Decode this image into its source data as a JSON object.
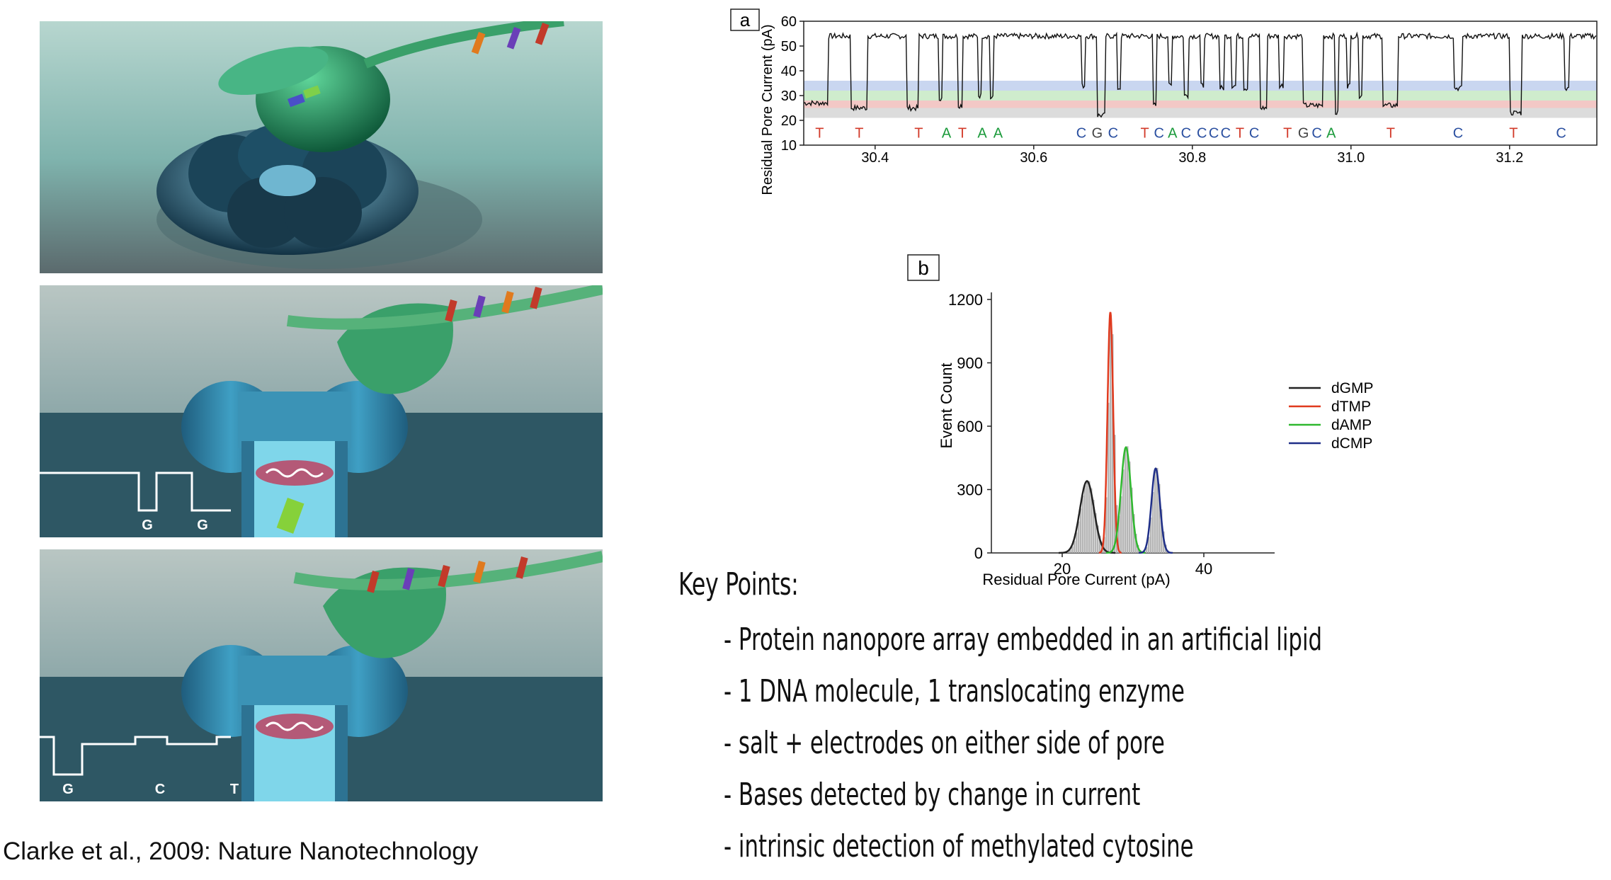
{
  "illustrations": [
    {
      "labels": []
    },
    {
      "labels": [
        "G",
        "G"
      ]
    },
    {
      "labels": [
        "G",
        "C",
        "T"
      ]
    }
  ],
  "citation": "Clarke et al., 2009: Nature Nanotechnology",
  "key_points": {
    "title": "Key Points:",
    "items": [
      "Protein nanopore array embedded in an artificial lipid",
      "1 DNA molecule, 1 translocating enzyme",
      "salt + electrodes on either side of pore",
      "Bases detected by change in current",
      "intrinsic detection of methylated cytosine"
    ],
    "bullet": "-"
  },
  "colors": {
    "T": "#d23a2a",
    "A": "#1a9a3a",
    "G": "#444444",
    "C": "#2a4fa0",
    "band_blue": "#c9d6f0",
    "band_green": "#cfeccd",
    "band_red": "#f3c8c6",
    "band_grey": "#dcdcdc"
  },
  "chart_data": [
    {
      "type": "line",
      "panel_label": "a",
      "ylabel": "Residual Pore Current (pA)",
      "ylim": [
        10,
        60
      ],
      "yticks": [
        "10",
        "20",
        "30",
        "40",
        "50",
        "60"
      ],
      "xlim": [
        30.31,
        31.31
      ],
      "xticks": [
        "30.4",
        "30.6",
        "30.8",
        "31.0",
        "31.2"
      ],
      "grid": false,
      "open_level": 54,
      "bands": [
        {
          "base": "C",
          "range": [
            32,
            36
          ]
        },
        {
          "base": "A",
          "range": [
            28,
            32
          ]
        },
        {
          "base": "T",
          "range": [
            25,
            28
          ]
        },
        {
          "base": "G",
          "range": [
            21,
            25
          ]
        }
      ],
      "events": [
        {
          "base": "T",
          "start": 30.31,
          "end": 30.34,
          "level": 27
        },
        {
          "base": "T",
          "start": 30.37,
          "end": 30.39,
          "level": 25
        },
        {
          "base": "T",
          "start": 30.44,
          "end": 30.455,
          "level": 25
        },
        {
          "base": "A",
          "start": 30.48,
          "end": 30.485,
          "level": 29
        },
        {
          "base": "T",
          "start": 30.505,
          "end": 30.51,
          "level": 26
        },
        {
          "base": "A",
          "start": 30.53,
          "end": 30.535,
          "level": 30
        },
        {
          "base": "A",
          "start": 30.545,
          "end": 30.55,
          "level": 29
        },
        {
          "base": "C",
          "start": 30.66,
          "end": 30.665,
          "level": 34
        },
        {
          "base": "G",
          "start": 30.68,
          "end": 30.69,
          "level": 22
        },
        {
          "base": "C",
          "start": 30.705,
          "end": 30.71,
          "level": 33
        },
        {
          "base": "T",
          "start": 30.75,
          "end": 30.755,
          "level": 26
        },
        {
          "base": "C",
          "start": 30.77,
          "end": 30.775,
          "level": 34
        },
        {
          "base": "A",
          "start": 30.79,
          "end": 30.795,
          "level": 30
        },
        {
          "base": "C",
          "start": 30.81,
          "end": 30.815,
          "level": 34
        },
        {
          "base": "C",
          "start": 30.835,
          "end": 30.84,
          "level": 33
        },
        {
          "base": "C",
          "start": 30.85,
          "end": 30.855,
          "level": 34
        },
        {
          "base": "C",
          "start": 30.865,
          "end": 30.87,
          "level": 33
        },
        {
          "base": "T",
          "start": 30.885,
          "end": 30.895,
          "level": 25
        },
        {
          "base": "C",
          "start": 30.91,
          "end": 30.915,
          "level": 34
        },
        {
          "base": "T",
          "start": 30.94,
          "end": 30.965,
          "level": 26
        },
        {
          "base": "G",
          "start": 30.98,
          "end": 30.985,
          "level": 23
        },
        {
          "base": "C",
          "start": 30.995,
          "end": 31.0,
          "level": 34
        },
        {
          "base": "A",
          "start": 31.01,
          "end": 31.015,
          "level": 30
        },
        {
          "base": "T",
          "start": 31.04,
          "end": 31.06,
          "level": 26
        },
        {
          "base": "C",
          "start": 31.13,
          "end": 31.14,
          "level": 33
        },
        {
          "base": "T",
          "start": 31.2,
          "end": 31.215,
          "level": 23
        },
        {
          "base": "C",
          "start": 31.27,
          "end": 31.275,
          "level": 33
        }
      ],
      "base_calls": [
        {
          "x": 30.33,
          "base": "T"
        },
        {
          "x": 30.38,
          "base": "T"
        },
        {
          "x": 30.455,
          "base": "T"
        },
        {
          "x": 30.49,
          "base": "A"
        },
        {
          "x": 30.51,
          "base": "T"
        },
        {
          "x": 30.535,
          "base": "A"
        },
        {
          "x": 30.555,
          "base": "A"
        },
        {
          "x": 30.66,
          "base": "C"
        },
        {
          "x": 30.68,
          "base": "G"
        },
        {
          "x": 30.7,
          "base": "C"
        },
        {
          "x": 30.74,
          "base": "T"
        },
        {
          "x": 30.758,
          "base": "C"
        },
        {
          "x": 30.775,
          "base": "A"
        },
        {
          "x": 30.792,
          "base": "C"
        },
        {
          "x": 30.812,
          "base": "C"
        },
        {
          "x": 30.827,
          "base": "C"
        },
        {
          "x": 30.842,
          "base": "C"
        },
        {
          "x": 30.86,
          "base": "T"
        },
        {
          "x": 30.878,
          "base": "C"
        },
        {
          "x": 30.92,
          "base": "T"
        },
        {
          "x": 30.94,
          "base": "G"
        },
        {
          "x": 30.957,
          "base": "C"
        },
        {
          "x": 30.975,
          "base": "A"
        },
        {
          "x": 31.05,
          "base": "T"
        },
        {
          "x": 31.135,
          "base": "C"
        },
        {
          "x": 31.205,
          "base": "T"
        },
        {
          "x": 31.265,
          "base": "C"
        }
      ]
    },
    {
      "type": "area",
      "panel_label": "b",
      "xlabel": "Residual Pore Current (pA)",
      "ylabel": "Event Count",
      "xlim": [
        10,
        50
      ],
      "ylim": [
        0,
        1200
      ],
      "xticks": [
        "20",
        "40"
      ],
      "yticks": [
        "0",
        "300",
        "600",
        "900",
        "1200"
      ],
      "legend_position": "right",
      "series": [
        {
          "name": "dGMP",
          "color": "#222222",
          "center": 23.5,
          "sigma": 1.0,
          "peak": 340
        },
        {
          "name": "dTMP",
          "color": "#e03a1e",
          "center": 26.8,
          "sigma": 0.4,
          "peak": 1140
        },
        {
          "name": "dAMP",
          "color": "#2fb82f",
          "center": 29.0,
          "sigma": 0.7,
          "peak": 500
        },
        {
          "name": "dCMP",
          "color": "#1f2f88",
          "center": 33.2,
          "sigma": 0.6,
          "peak": 400
        }
      ]
    }
  ]
}
